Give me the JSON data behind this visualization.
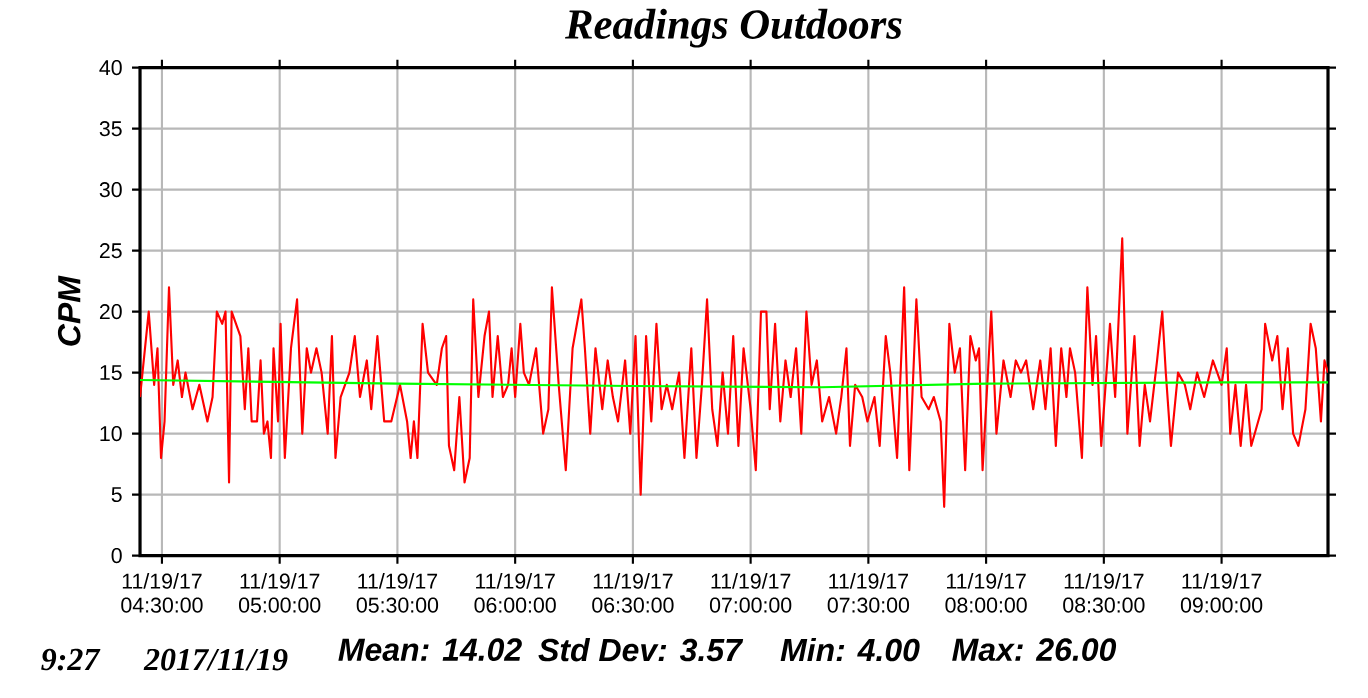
{
  "chart_data": {
    "type": "line",
    "title": "Readings Outdoors",
    "ylabel": "CPM",
    "annotations": [
      "9:27",
      "2017/11/19",
      "Mean: 14.02",
      "Std Dev: 3.57",
      "Min: 4.00",
      "Max: 26.00"
    ],
    "xlim": [
      "2017-11-19T04:24:25",
      "2017-11-19T09:27:07"
    ],
    "ylim": [
      0,
      40
    ],
    "yticks": [
      0,
      5,
      10,
      15,
      20,
      25,
      30,
      35,
      40
    ],
    "xticks": [
      {
        "value": "2017-11-19T04:30:00",
        "label": "11/19/17 04:30:00"
      },
      {
        "value": "2017-11-19T05:00:00",
        "label": "11/19/17 05:00:00"
      },
      {
        "value": "2017-11-19T05:30:00",
        "label": "11/19/17 05:30:00"
      },
      {
        "value": "2017-11-19T06:00:00",
        "label": "11/19/17 06:00:00"
      },
      {
        "value": "2017-11-19T06:30:00",
        "label": "11/19/17 06:30:00"
      },
      {
        "value": "2017-11-19T07:00:00",
        "label": "11/19/17 07:00:00"
      },
      {
        "value": "2017-11-19T07:30:00",
        "label": "11/19/17 07:30:00"
      },
      {
        "value": "2017-11-19T08:00:00",
        "label": "11/19/17 08:00:00"
      },
      {
        "value": "2017-11-19T08:30:00",
        "label": "11/19/17 08:30:00"
      },
      {
        "value": "2017-11-19T09:00:00",
        "label": "11/19/17 09:00:00"
      }
    ],
    "grid": true,
    "marker": "none",
    "line_style": "solid",
    "series": [
      {
        "color": "#ff0000",
        "x": [
          "2017-11-19T04:24:25",
          "2017-11-19T04:26:38",
          "2017-11-19T04:28:01",
          "2017-11-19T04:28:52",
          "2017-11-19T04:29:46",
          "2017-11-19T04:30:40",
          "2017-11-19T04:31:48",
          "2017-11-19T04:32:53",
          "2017-11-19T04:34:01",
          "2017-11-19T04:35:06",
          "2017-11-19T04:36:00",
          "2017-11-19T04:37:48",
          "2017-11-19T04:39:32",
          "2017-11-19T04:41:35",
          "2017-11-19T04:42:54",
          "2017-11-19T04:43:59",
          "2017-11-19T04:45:22",
          "2017-11-19T04:46:12",
          "2017-11-19T04:47:06",
          "2017-11-19T04:47:46",
          "2017-11-19T04:49:59",
          "2017-11-19T04:51:07",
          "2017-11-19T04:52:01",
          "2017-11-19T04:52:52",
          "2017-11-19T04:54:14",
          "2017-11-19T04:55:08",
          "2017-11-19T04:55:59",
          "2017-11-19T04:56:53",
          "2017-11-19T04:57:47",
          "2017-11-19T04:58:26",
          "2017-11-19T04:59:35",
          "2017-11-19T05:00:14",
          "2017-11-19T05:01:19",
          "2017-11-19T05:02:53",
          "2017-11-19T05:04:26",
          "2017-11-19T05:05:46",
          "2017-11-19T05:06:54",
          "2017-11-19T05:07:59",
          "2017-11-19T05:09:22",
          "2017-11-19T05:10:41",
          "2017-11-19T05:12:14",
          "2017-11-19T05:13:19",
          "2017-11-19T05:14:13",
          "2017-11-19T05:15:32",
          "2017-11-19T05:17:46",
          "2017-11-19T05:19:08",
          "2017-11-19T05:20:28",
          "2017-11-19T05:22:12",
          "2017-11-19T05:23:20",
          "2017-11-19T05:24:54",
          "2017-11-19T05:26:38",
          "2017-11-19T05:28:26",
          "2017-11-19T05:30:40",
          "2017-11-19T05:32:28",
          "2017-11-19T05:33:22",
          "2017-11-19T05:34:12",
          "2017-11-19T05:35:06",
          "2017-11-19T05:36:25",
          "2017-11-19T05:37:48",
          "2017-11-19T05:40:01",
          "2017-11-19T05:41:20",
          "2017-11-19T05:42:25",
          "2017-11-19T05:43:08",
          "2017-11-19T05:44:28",
          "2017-11-19T05:45:47",
          "2017-11-19T05:47:06",
          "2017-11-19T05:48:25",
          "2017-11-19T05:49:19",
          "2017-11-19T05:50:38",
          "2017-11-19T05:52:12",
          "2017-11-19T05:53:20",
          "2017-11-19T05:54:14",
          "2017-11-19T05:55:34",
          "2017-11-19T05:56:53",
          "2017-11-19T05:58:12",
          "2017-11-19T05:59:06",
          "2017-11-19T06:00:00",
          "2017-11-19T06:01:19",
          "2017-11-19T06:02:13",
          "2017-11-19T06:03:32",
          "2017-11-19T06:05:20",
          "2017-11-19T06:07:08",
          "2017-11-19T06:08:28",
          "2017-11-19T06:09:22",
          "2017-11-19T06:11:06",
          "2017-11-19T06:12:54",
          "2017-11-19T06:14:38",
          "2017-11-19T06:16:52",
          "2017-11-19T06:17:46",
          "2017-11-19T06:19:08",
          "2017-11-19T06:20:28",
          "2017-11-19T06:22:12",
          "2017-11-19T06:23:35",
          "2017-11-19T06:24:54",
          "2017-11-19T06:26:13",
          "2017-11-19T06:28:01",
          "2017-11-19T06:29:20",
          "2017-11-19T06:30:40",
          "2017-11-19T06:31:59",
          "2017-11-19T06:33:22",
          "2017-11-19T06:34:41",
          "2017-11-19T06:36:00",
          "2017-11-19T06:37:19",
          "2017-11-19T06:38:38",
          "2017-11-19T06:40:01",
          "2017-11-19T06:41:46",
          "2017-11-19T06:43:08",
          "2017-11-19T06:44:53",
          "2017-11-19T06:46:12",
          "2017-11-19T06:47:35",
          "2017-11-19T06:48:54",
          "2017-11-19T06:50:13",
          "2017-11-19T06:51:32",
          "2017-11-19T06:52:52",
          "2017-11-19T06:54:14",
          "2017-11-19T06:55:34",
          "2017-11-19T06:56:53",
          "2017-11-19T06:58:12",
          "2017-11-19T07:00:00",
          "2017-11-19T07:01:19",
          "2017-11-19T07:02:38",
          "2017-11-19T07:04:01",
          "2017-11-19T07:04:52",
          "2017-11-19T07:06:14",
          "2017-11-19T07:07:34",
          "2017-11-19T07:08:53",
          "2017-11-19T07:10:12",
          "2017-11-19T07:11:35",
          "2017-11-19T07:12:54",
          "2017-11-19T07:14:13",
          "2017-11-19T07:15:32",
          "2017-11-19T07:16:52",
          "2017-11-19T07:18:14",
          "2017-11-19T07:19:59",
          "2017-11-19T07:21:47",
          "2017-11-19T07:23:06",
          "2017-11-19T07:24:25",
          "2017-11-19T07:25:19",
          "2017-11-19T07:26:38",
          "2017-11-19T07:28:26",
          "2017-11-19T07:29:46",
          "2017-11-19T07:31:34",
          "2017-11-19T07:32:53",
          "2017-11-19T07:34:26",
          "2017-11-19T07:35:35",
          "2017-11-19T07:37:19",
          "2017-11-19T07:39:07",
          "2017-11-19T07:40:26",
          "2017-11-19T07:42:14",
          "2017-11-19T07:43:34",
          "2017-11-19T07:45:22",
          "2017-11-19T07:46:41",
          "2017-11-19T07:48:25",
          "2017-11-19T07:49:19",
          "2017-11-19T07:50:38",
          "2017-11-19T07:52:01",
          "2017-11-19T07:53:20",
          "2017-11-19T07:54:40",
          "2017-11-19T07:55:59",
          "2017-11-19T07:57:22",
          "2017-11-19T07:58:12",
          "2017-11-19T07:59:06",
          "2017-11-19T08:01:19",
          "2017-11-19T08:02:38",
          "2017-11-19T08:04:26",
          "2017-11-19T08:06:14",
          "2017-11-19T08:07:34",
          "2017-11-19T08:08:53",
          "2017-11-19T08:10:12",
          "2017-11-19T08:12:00",
          "2017-11-19T08:13:48",
          "2017-11-19T08:15:07",
          "2017-11-19T08:16:26",
          "2017-11-19T08:17:46",
          "2017-11-19T08:19:08",
          "2017-11-19T08:20:28",
          "2017-11-19T08:21:22",
          "2017-11-19T08:22:41",
          "2017-11-19T08:24:25",
          "2017-11-19T08:25:48",
          "2017-11-19T08:27:07",
          "2017-11-19T08:28:01",
          "2017-11-19T08:29:20",
          "2017-11-19T08:31:34",
          "2017-11-19T08:32:53",
          "2017-11-19T08:34:41",
          "2017-11-19T08:36:00",
          "2017-11-19T08:37:48",
          "2017-11-19T08:39:07",
          "2017-11-19T08:40:26",
          "2017-11-19T08:41:46",
          "2017-11-19T08:43:34",
          "2017-11-19T08:44:53",
          "2017-11-19T08:45:47",
          "2017-11-19T08:47:06",
          "2017-11-19T08:48:54",
          "2017-11-19T08:50:38",
          "2017-11-19T08:52:01",
          "2017-11-19T08:53:46",
          "2017-11-19T08:55:34",
          "2017-11-19T08:57:47",
          "2017-11-19T09:00:00",
          "2017-11-19T09:01:19",
          "2017-11-19T09:02:13",
          "2017-11-19T09:03:32",
          "2017-11-19T09:04:52",
          "2017-11-19T09:06:14",
          "2017-11-19T09:07:34",
          "2017-11-19T09:10:12",
          "2017-11-19T09:11:06",
          "2017-11-19T09:12:54",
          "2017-11-19T09:14:13",
          "2017-11-19T09:15:32",
          "2017-11-19T09:16:52",
          "2017-11-19T09:18:14",
          "2017-11-19T09:19:34",
          "2017-11-19T09:21:22",
          "2017-11-19T09:22:41",
          "2017-11-19T09:24:00",
          "2017-11-19T09:25:19",
          "2017-11-19T09:26:13",
          "2017-11-19T09:27:07"
        ],
        "values": [
          13,
          20,
          14,
          17,
          8,
          11,
          22,
          14,
          16,
          13,
          15,
          12,
          14,
          11,
          13,
          20,
          19,
          20,
          6,
          20,
          18,
          12,
          17,
          11,
          11,
          16,
          10,
          11,
          8,
          17,
          11,
          19,
          8,
          17,
          21,
          10,
          17,
          15,
          17,
          15,
          10,
          18,
          8,
          13,
          15,
          18,
          13,
          16,
          12,
          18,
          11,
          11,
          14,
          11,
          8,
          11,
          8,
          19,
          15,
          14,
          17,
          18,
          9,
          7,
          13,
          6,
          8,
          21,
          13,
          18,
          20,
          13,
          18,
          13,
          14,
          17,
          13,
          19,
          15,
          14,
          17,
          10,
          12,
          22,
          14,
          7,
          17,
          21,
          17,
          10,
          17,
          12,
          16,
          13,
          11,
          16,
          10,
          18,
          5,
          18,
          11,
          19,
          12,
          14,
          12,
          15,
          8,
          17,
          8,
          14,
          21,
          12,
          9,
          15,
          10,
          18,
          9,
          17,
          12,
          7,
          20,
          20,
          12,
          19,
          11,
          16,
          13,
          17,
          10,
          20,
          14,
          16,
          11,
          13,
          10,
          13,
          17,
          9,
          14,
          13,
          11,
          13,
          9,
          18,
          15,
          8,
          22,
          7,
          21,
          13,
          12,
          13,
          11,
          4,
          19,
          15,
          17,
          7,
          18,
          16,
          17,
          7,
          20,
          10,
          16,
          13,
          16,
          15,
          16,
          12,
          16,
          12,
          17,
          9,
          17,
          13,
          17,
          15,
          8,
          22,
          14,
          18,
          9,
          19,
          13,
          26,
          10,
          18,
          9,
          14,
          11,
          16,
          20,
          15,
          9,
          15,
          14,
          12,
          15,
          13,
          16,
          14,
          17,
          10,
          14,
          9,
          14,
          9,
          12,
          19,
          16,
          18,
          12,
          17,
          10,
          9,
          12,
          19,
          17,
          11,
          16,
          15
        ]
      },
      {
        "color": "#00ff00",
        "x": [
          "2017-11-19T04:24:25",
          "2017-11-19T05:30:00",
          "2017-11-19T06:30:00",
          "2017-11-19T07:18:00",
          "2017-11-19T08:00:00",
          "2017-11-19T09:00:00",
          "2017-11-19T09:27:07"
        ],
        "values": [
          14.4,
          14.1,
          13.9,
          13.8,
          14.1,
          14.2,
          14.2
        ]
      }
    ]
  }
}
